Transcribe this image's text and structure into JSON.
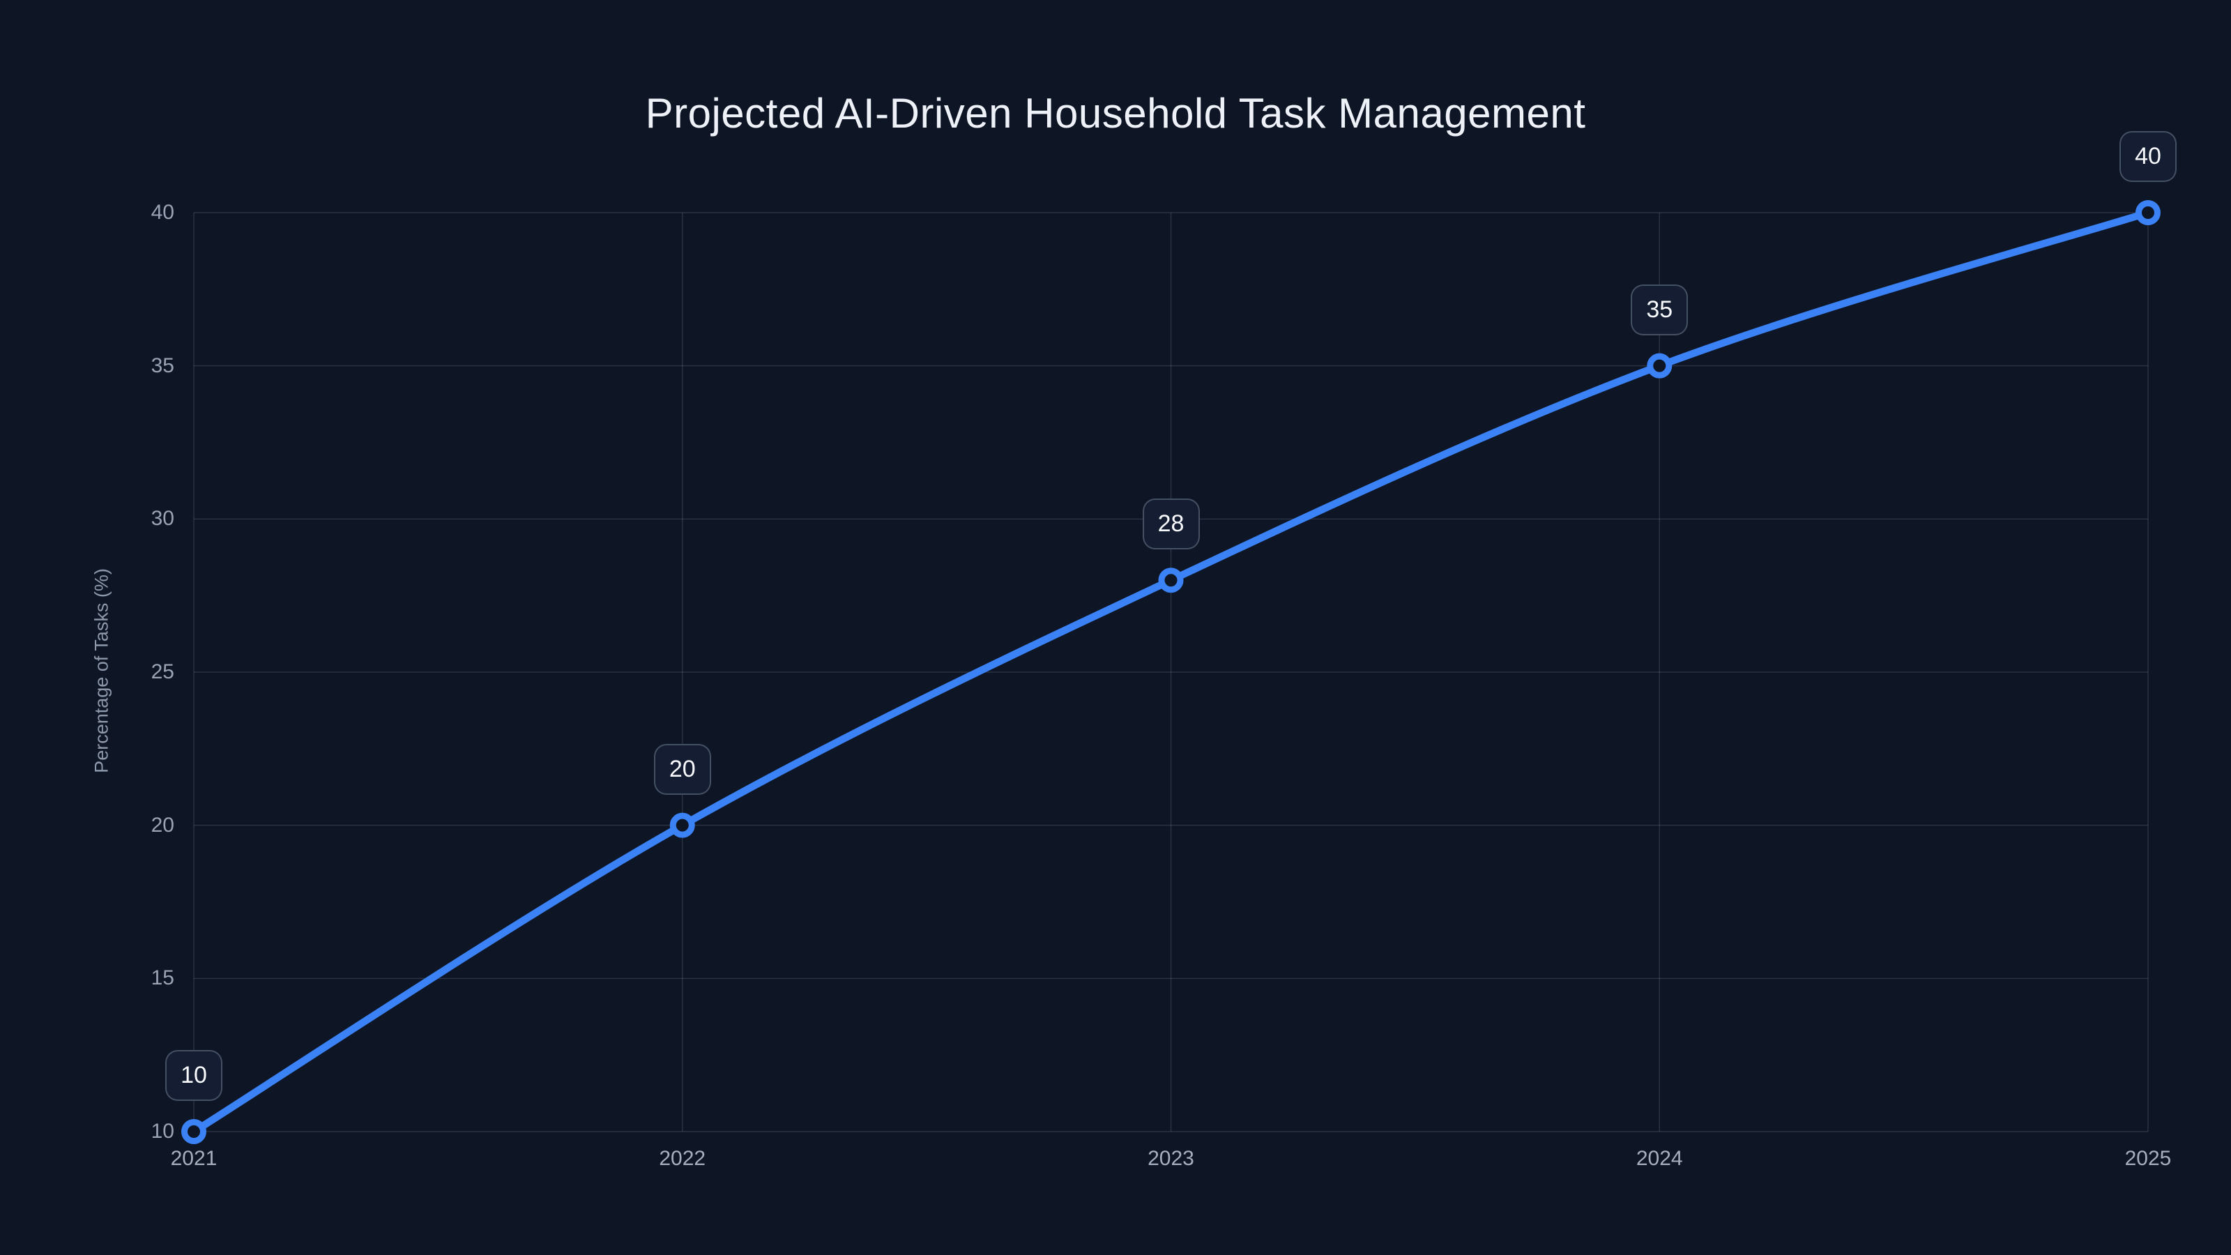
{
  "title": "Projected AI-Driven Household Task Management",
  "chart_data": {
    "type": "line",
    "title": "Projected AI-Driven Household Task Management",
    "categories": [
      "2021",
      "2022",
      "2023",
      "2024",
      "2025"
    ],
    "values": [
      10,
      20,
      28,
      35,
      40
    ],
    "data_labels": [
      "10",
      "20",
      "28",
      "35",
      "40"
    ],
    "xlabel": "",
    "ylabel": "Percentage of Tasks (%)",
    "yticks": [
      10,
      15,
      20,
      25,
      30,
      35,
      40
    ],
    "ylim": [
      10,
      40
    ],
    "grid": true,
    "legend": false,
    "smooth": true,
    "line_color": "#3b82f6",
    "marker_fill": "#0e1626",
    "background_color": "#0e1626",
    "grid_color": "rgba(148,163,184,0.20)",
    "tick_color": "#99a3b4",
    "title_color": "#eef2f8",
    "label_box_bg": "#141d31",
    "label_box_border": "rgba(148,163,184,0.38)"
  }
}
